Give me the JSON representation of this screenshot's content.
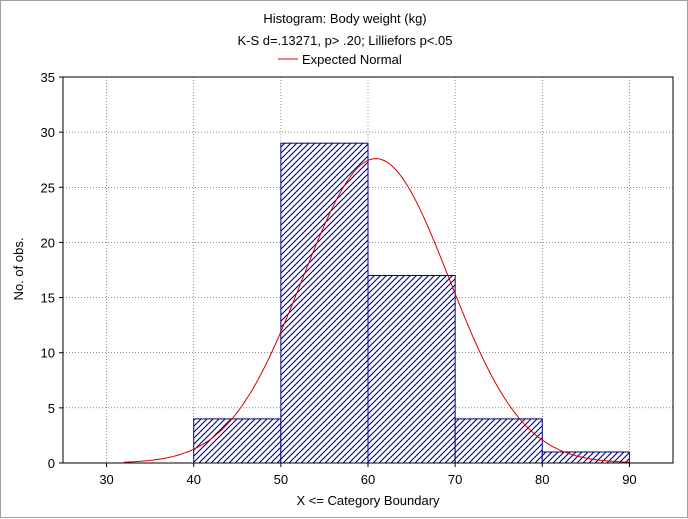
{
  "chart_data": {
    "type": "bar",
    "title": "Histogram: Body weight (kg)",
    "subtitle": "K-S d=.13271, p> .20; Lilliefors p<.05",
    "legend": [
      "Expected Normal"
    ],
    "legend_position": "top",
    "xlabel": "X <= Category Boundary",
    "ylabel": "No. of obs.",
    "xlim": [
      25,
      95
    ],
    "ylim": [
      0,
      35
    ],
    "xticks": [
      30,
      40,
      50,
      60,
      70,
      80,
      90
    ],
    "yticks": [
      0,
      5,
      10,
      15,
      20,
      25,
      30,
      35
    ],
    "grid": true,
    "bins": [
      {
        "from": 40,
        "to": 50,
        "count": 4
      },
      {
        "from": 50,
        "to": 60,
        "count": 29
      },
      {
        "from": 60,
        "to": 70,
        "count": 17
      },
      {
        "from": 70,
        "to": 80,
        "count": 4
      },
      {
        "from": 80,
        "to": 90,
        "count": 1
      }
    ],
    "expected_normal": {
      "mean": 60.9,
      "peak": 27.6,
      "sd": 8.4,
      "x_range": [
        32,
        90
      ],
      "color": "#d40000"
    },
    "bar_fill": "#8a8ad6",
    "bar_stroke": "#000080"
  }
}
